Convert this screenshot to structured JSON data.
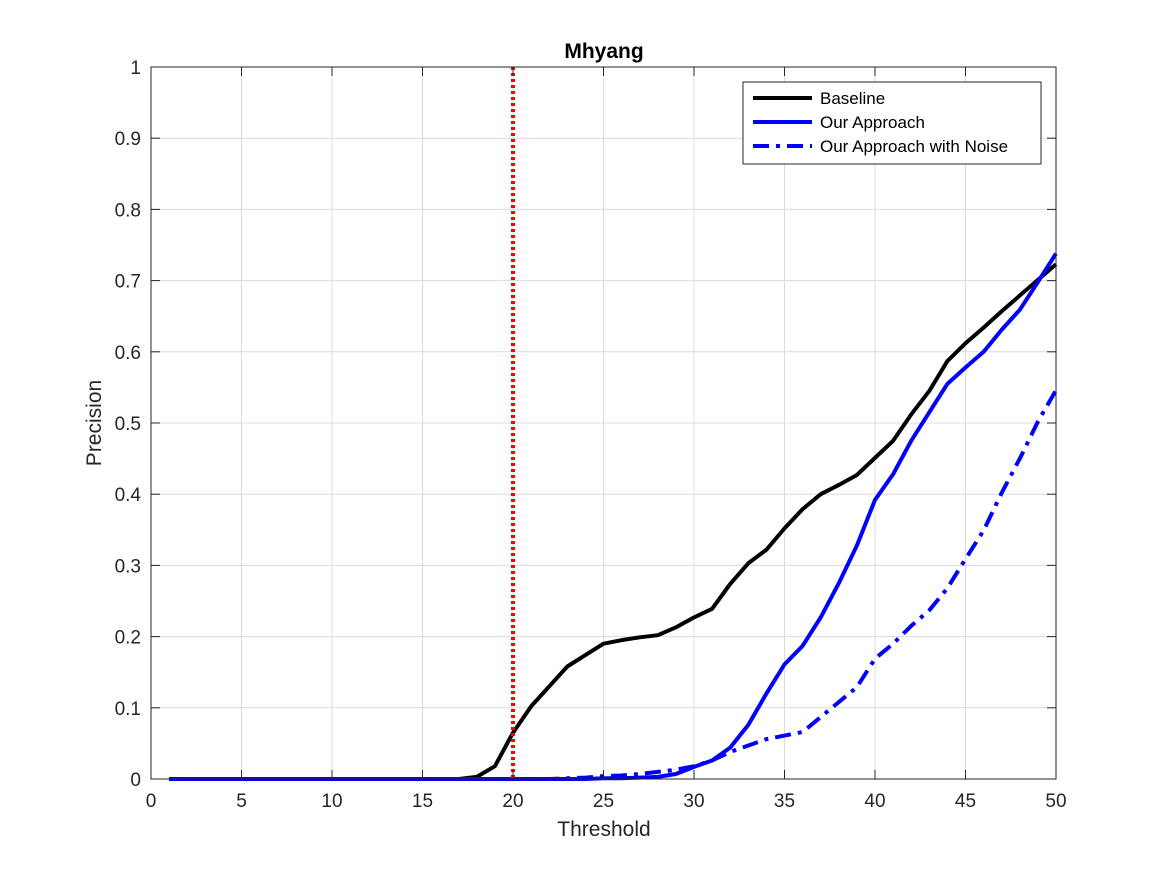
{
  "chart_data": {
    "type": "line",
    "title": "Mhyang",
    "xlabel": "Threshold",
    "ylabel": "Precision",
    "xlim": [
      0,
      50
    ],
    "ylim": [
      0,
      1
    ],
    "xticks": [
      0,
      5,
      10,
      15,
      20,
      25,
      30,
      35,
      40,
      45,
      50
    ],
    "xtick_labels": [
      "0",
      "5",
      "10",
      "15",
      "20",
      "25",
      "30",
      "35",
      "40",
      "45",
      "50"
    ],
    "yticks": [
      0,
      0.1,
      0.2,
      0.3,
      0.4,
      0.5,
      0.6,
      0.7,
      0.8,
      0.9,
      1
    ],
    "ytick_labels": [
      "0",
      "0.1",
      "0.2",
      "0.3",
      "0.4",
      "0.5",
      "0.6",
      "0.7",
      "0.8",
      "0.9",
      "1"
    ],
    "grid": true,
    "legend_position": "top-right",
    "x": [
      1,
      2,
      3,
      4,
      5,
      6,
      7,
      8,
      9,
      10,
      11,
      12,
      13,
      14,
      15,
      16,
      17,
      18,
      19,
      20,
      21,
      22,
      23,
      24,
      25,
      26,
      27,
      28,
      29,
      30,
      31,
      32,
      33,
      34,
      35,
      36,
      37,
      38,
      39,
      40,
      41,
      42,
      43,
      44,
      45,
      46,
      47,
      48,
      49,
      50
    ],
    "series": [
      {
        "name": "Baseline",
        "color": "#000000",
        "style": "solid",
        "values": [
          0,
          0,
          0,
          0,
          0,
          0,
          0,
          0,
          0,
          0,
          0,
          0,
          0,
          0,
          0,
          0,
          0,
          0.003,
          0.018,
          0.065,
          0.102,
          0.13,
          0.158,
          0.174,
          0.19,
          0.195,
          0.199,
          0.202,
          0.213,
          0.227,
          0.239,
          0.274,
          0.303,
          0.322,
          0.352,
          0.379,
          0.4,
          0.413,
          0.427,
          0.451,
          0.475,
          0.512,
          0.545,
          0.587,
          0.612,
          0.634,
          0.657,
          0.679,
          0.701,
          0.723
        ]
      },
      {
        "name": "Our Approach",
        "color": "#0000ff",
        "style": "solid",
        "values": [
          0,
          0,
          0,
          0,
          0,
          0,
          0,
          0,
          0,
          0,
          0,
          0,
          0,
          0,
          0,
          0,
          0,
          0,
          0,
          0,
          0,
          0,
          0,
          0,
          0.001,
          0.001,
          0.002,
          0.003,
          0.007,
          0.017,
          0.026,
          0.044,
          0.076,
          0.12,
          0.161,
          0.187,
          0.227,
          0.275,
          0.328,
          0.392,
          0.428,
          0.475,
          0.515,
          0.555,
          0.578,
          0.6,
          0.631,
          0.659,
          0.698,
          0.738
        ]
      },
      {
        "name": "Our Approach with Noise",
        "color": "#0000ff",
        "style": "dashdot",
        "values": [
          0,
          0,
          0,
          0,
          0,
          0,
          0,
          0,
          0,
          0,
          0,
          0,
          0,
          0,
          0,
          0,
          0,
          0,
          0,
          0,
          0,
          0,
          0.001,
          0.002,
          0.004,
          0.005,
          0.007,
          0.01,
          0.013,
          0.018,
          0.026,
          0.038,
          0.047,
          0.056,
          0.061,
          0.066,
          0.087,
          0.108,
          0.129,
          0.169,
          0.19,
          0.215,
          0.237,
          0.268,
          0.309,
          0.349,
          0.402,
          0.45,
          0.502,
          0.546
        ]
      }
    ],
    "annotations": [
      {
        "type": "vertical-line",
        "x": 20,
        "color": "#ff0000",
        "style": "dotted"
      }
    ]
  }
}
